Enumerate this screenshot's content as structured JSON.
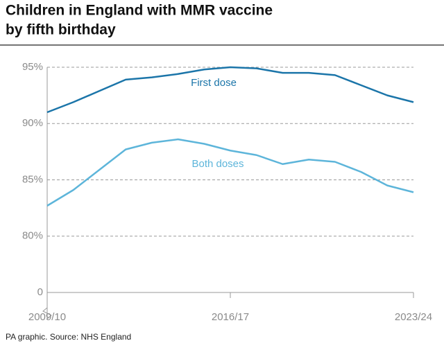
{
  "chart_data": {
    "type": "line",
    "title": [
      "Children in England with MMR vaccine",
      "by fifth birthday"
    ],
    "source": "PA graphic. Source: NHS England",
    "categories": [
      "2009/10",
      null,
      null,
      null,
      null,
      null,
      null,
      "2016/17",
      null,
      null,
      null,
      null,
      null,
      null,
      "2023/24"
    ],
    "series": [
      {
        "name": "First dose",
        "color": "#1b75a9",
        "values": [
          91.0,
          91.9,
          92.9,
          93.9,
          94.1,
          94.4,
          94.8,
          95.0,
          94.9,
          94.5,
          94.5,
          94.3,
          93.4,
          92.5,
          91.9
        ]
      },
      {
        "name": "Both doses",
        "color": "#5db5da",
        "values": [
          82.7,
          84.1,
          85.9,
          87.7,
          88.3,
          88.6,
          88.2,
          87.6,
          87.2,
          86.4,
          86.8,
          86.6,
          85.7,
          84.5,
          83.9
        ]
      }
    ],
    "ylim": [
      0,
      95
    ],
    "axis_break": [
      0,
      75
    ],
    "yticks": [
      {
        "value": 0,
        "label": "0"
      },
      {
        "value": 80,
        "label": "80%"
      },
      {
        "value": 85,
        "label": "85%"
      },
      {
        "value": 90,
        "label": "90%"
      },
      {
        "value": 95,
        "label": "95%"
      }
    ],
    "grid": true
  }
}
